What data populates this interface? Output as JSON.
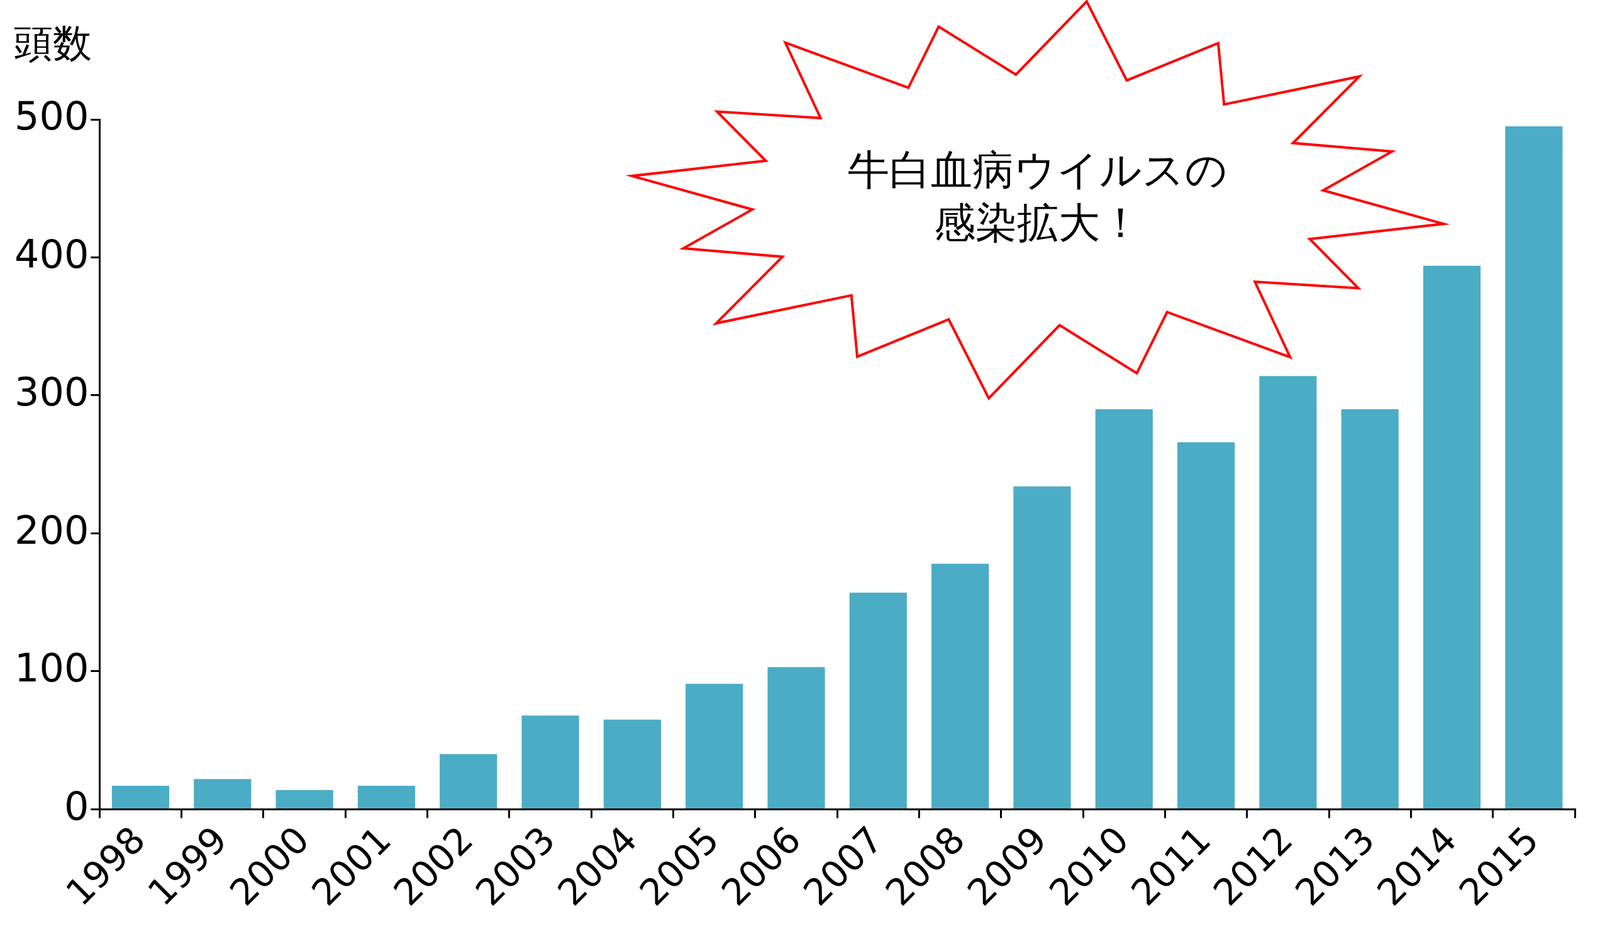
{
  "chart_data": {
    "type": "bar",
    "y_label": "頭数",
    "annotation": [
      "牛白血病ウイルスの",
      "感染拡大！"
    ],
    "categories": [
      "1998",
      "1999",
      "2000",
      "2001",
      "2002",
      "2003",
      "2004",
      "2005",
      "2006",
      "2007",
      "2008",
      "2009",
      "2010",
      "2011",
      "2012",
      "2013",
      "2014",
      "2015"
    ],
    "values": [
      17,
      22,
      14,
      17,
      40,
      68,
      65,
      91,
      103,
      157,
      178,
      234,
      290,
      266,
      314,
      290,
      394,
      495
    ],
    "color": "#4bacc6",
    "ylim": [
      0,
      500
    ],
    "yticks": [
      0,
      100,
      200,
      300,
      400,
      500
    ],
    "grid": false
  }
}
